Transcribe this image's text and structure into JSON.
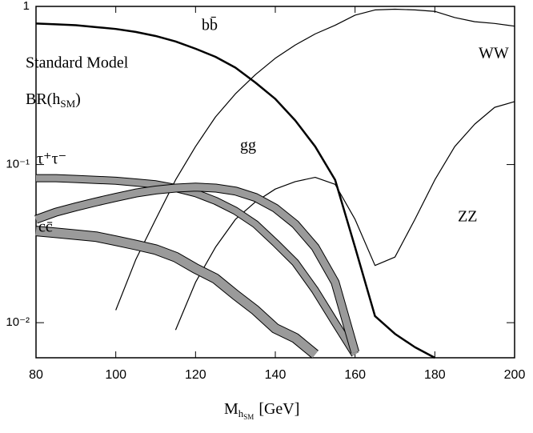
{
  "chart_data": {
    "type": "line",
    "annotations": [
      "Standard Model"
    ],
    "ylabel": [
      "BR(h",
      "SM",
      ")"
    ],
    "xlabel": [
      "M",
      "h",
      "SM",
      "[GeV]"
    ],
    "log_y": true,
    "color": "#000000",
    "xlim": [
      80,
      200
    ],
    "xticks": [
      80,
      100,
      120,
      140,
      160,
      180,
      200
    ],
    "ylim": [
      0.006,
      1
    ],
    "yticks": [
      1,
      {
        "value": 0.1,
        "label": "10⁻¹"
      },
      {
        "value": 0.01,
        "label": "10⁻²"
      }
    ],
    "x": [
      80,
      85,
      90,
      95,
      100,
      105,
      110,
      115,
      120,
      125,
      130,
      135,
      140,
      145,
      150,
      155,
      160,
      165,
      170,
      175,
      180,
      185,
      190,
      195,
      200
    ],
    "series": [
      {
        "name": "bb̄",
        "values": [
          0.78,
          0.77,
          0.76,
          0.74,
          0.72,
          0.69,
          0.65,
          0.6,
          0.54,
          0.48,
          0.41,
          0.33,
          0.26,
          0.19,
          0.13,
          0.08,
          0.03,
          0.011,
          0.0085,
          0.007,
          0.006,
          null,
          null,
          null,
          null
        ]
      },
      {
        "name": "WW",
        "values": [
          null,
          null,
          null,
          null,
          0.012,
          0.025,
          0.045,
          0.08,
          0.13,
          0.2,
          0.28,
          0.37,
          0.47,
          0.57,
          0.67,
          0.76,
          0.88,
          0.95,
          0.96,
          0.95,
          0.93,
          0.85,
          0.8,
          0.78,
          0.75
        ]
      },
      {
        "name": "ZZ",
        "values": [
          null,
          null,
          null,
          null,
          null,
          null,
          null,
          0.009,
          0.018,
          0.03,
          0.045,
          0.058,
          0.07,
          0.078,
          0.083,
          0.075,
          0.045,
          0.023,
          0.026,
          0.045,
          0.08,
          0.13,
          0.18,
          0.23,
          0.25
        ]
      },
      {
        "name": "τ⁺τ⁻",
        "values": [
          0.082,
          0.082,
          0.081,
          0.08,
          0.079,
          0.077,
          0.075,
          0.071,
          0.066,
          0.059,
          0.051,
          0.042,
          0.032,
          0.024,
          0.016,
          0.01,
          0.0063,
          null,
          null,
          null,
          null,
          null,
          null,
          null,
          null
        ]
      },
      {
        "name": "gg",
        "values": [
          0.045,
          0.05,
          0.054,
          0.058,
          0.062,
          0.066,
          0.069,
          0.071,
          0.072,
          0.071,
          0.068,
          0.062,
          0.053,
          0.042,
          0.03,
          0.018,
          0.0065,
          null,
          null,
          null,
          null,
          null,
          null,
          null,
          null
        ]
      },
      {
        "name": "cc̄",
        "values": [
          0.038,
          0.037,
          0.036,
          0.035,
          0.033,
          0.031,
          0.029,
          0.026,
          0.022,
          0.019,
          0.015,
          0.012,
          0.0092,
          0.008,
          0.0063,
          null,
          null,
          null,
          null,
          null,
          null,
          null,
          null,
          null,
          null
        ]
      }
    ]
  }
}
